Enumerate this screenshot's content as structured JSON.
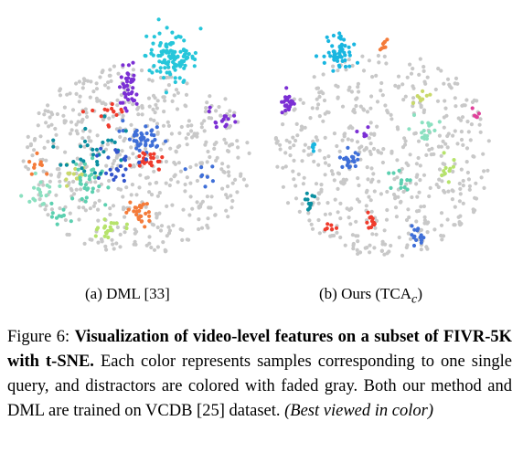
{
  "chart_data": [
    {
      "type": "scatter",
      "title": "(a) DML [33]",
      "description": "t-SNE of video-level features; gray = distractors, colored = query groups (spread / mixed)",
      "colors": [
        "#26c6da",
        "#7b2fd4",
        "#3f6fd8",
        "#ef3b2c",
        "#f47b3a",
        "#8be0c0",
        "#c9d96a",
        "#5cd0b0",
        "#0a8fa0",
        "#b6e36b",
        "#3355cc"
      ]
    },
    {
      "type": "scatter",
      "title": "(b) Ours (TCA_c)",
      "description": "t-SNE of video-level features; gray = distractors, colored = query groups (tight clusters)",
      "colors": [
        "#19b6e0",
        "#7b2fd4",
        "#3f6fd8",
        "#ef3b2c",
        "#f47b3a",
        "#8be0c0",
        "#c9d96a",
        "#5cd0b0",
        "#0a8fa0",
        "#b6e36b",
        "#e0409a"
      ]
    }
  ],
  "captions": {
    "a": "(a) DML [33]",
    "b_prefix": "(b) Ours (TCA",
    "b_sub": "c",
    "b_suffix": ")"
  },
  "caption": {
    "label": "Figure 6:",
    "bold": "Visualization of video-level features on a subset of FIVR-5K with t-SNE.",
    "body": "Each color represents samples corresponding to one single query, and distractors are colored with faded gray. Both our method and DML are trained on VCDB [25] dataset.",
    "italic": "(Best viewed in color)"
  }
}
